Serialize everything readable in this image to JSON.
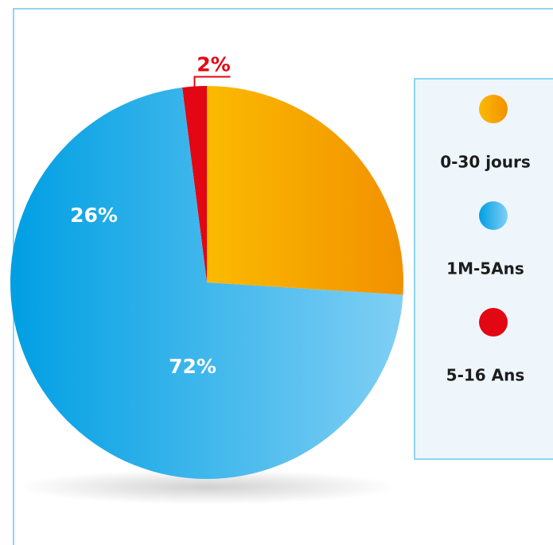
{
  "chart_data": {
    "type": "pie",
    "categories": [
      "0-30 jours",
      "1M-5Ans",
      "5-16 Ans"
    ],
    "values": [
      26,
      72,
      2
    ],
    "value_labels": [
      "26%",
      "72%",
      "2%"
    ],
    "colors": [
      [
        "#fbba00",
        "#f29100"
      ],
      [
        "#009fe3",
        "#80cff4"
      ],
      [
        "#e30613",
        "#e30613"
      ]
    ],
    "legend": "right"
  }
}
